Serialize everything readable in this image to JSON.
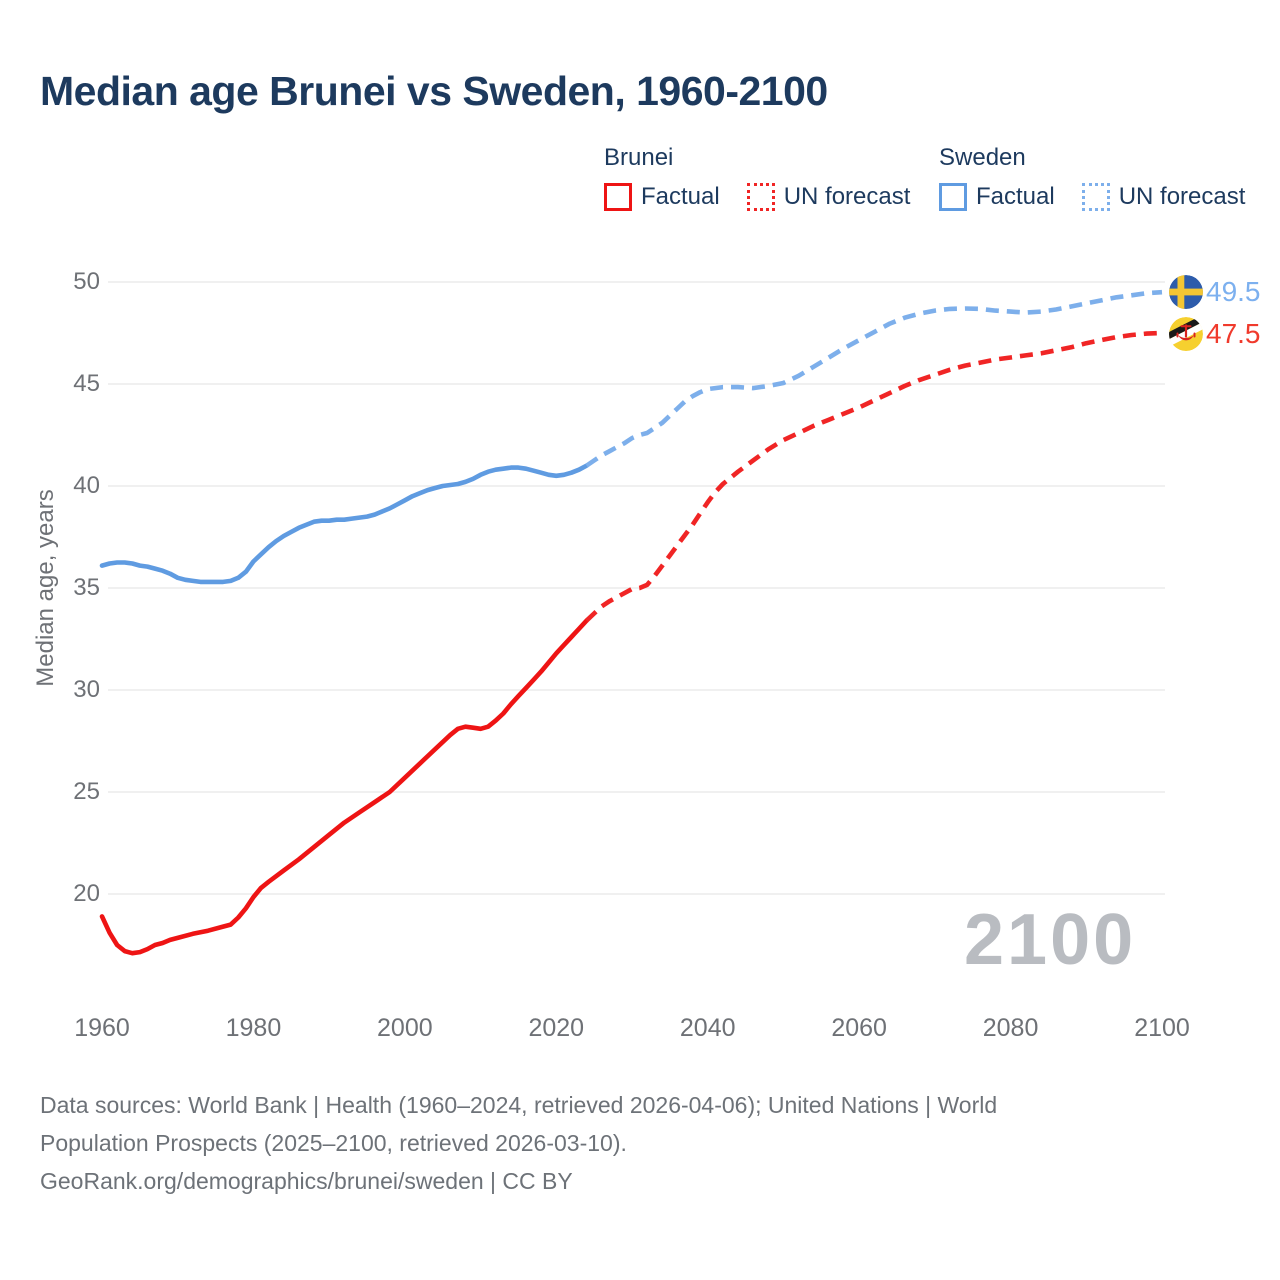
{
  "title": "Median age Brunei vs Sweden, 1960-2100",
  "legend": {
    "groups": [
      {
        "name": "Brunei",
        "factual_label": "Factual",
        "forecast_label": "UN forecast",
        "factual_color": "#ee1414",
        "forecast_color": "#f02525"
      },
      {
        "name": "Sweden",
        "factual_label": "Factual",
        "forecast_label": "UN forecast",
        "factual_color": "#5f9be1",
        "forecast_color": "#7dafeb"
      }
    ]
  },
  "watermark": "2100",
  "end_labels": {
    "sweden": {
      "value": "49.5",
      "color": "#7cb0ef",
      "flag": "sweden-flag"
    },
    "brunei": {
      "value": "47.5",
      "color": "#f03a2c",
      "flag": "brunei-flag"
    }
  },
  "footer_lines": [
    "Data sources: World Bank | Health (1960–2024, retrieved 2026-04-06); United Nations | World",
    "Population Prospects (2025–2100, retrieved 2026-03-10).",
    "GeoRank.org/demographics/brunei/sweden | CC BY"
  ],
  "chart_data": {
    "type": "line",
    "title": "Median age Brunei vs Sweden, 1960-2100",
    "xlabel": "",
    "ylabel": "Median age, years",
    "x_range": [
      1960,
      2100
    ],
    "y_ticks": [
      50,
      45,
      40,
      35,
      30,
      25,
      20
    ],
    "x_ticks": [
      1960,
      1980,
      2000,
      2020,
      2040,
      2060,
      2080,
      2100
    ],
    "grid": "horizontal",
    "legend_position": "top",
    "series": [
      {
        "name": "Brunei factual",
        "style": "solid",
        "color": "#ee1414",
        "points": [
          [
            1960,
            18.9
          ],
          [
            1961,
            18.1
          ],
          [
            1962,
            17.5
          ],
          [
            1963,
            17.2
          ],
          [
            1964,
            17.1
          ],
          [
            1965,
            17.15
          ],
          [
            1966,
            17.3
          ],
          [
            1967,
            17.5
          ],
          [
            1968,
            17.6
          ],
          [
            1969,
            17.75
          ],
          [
            1970,
            17.85
          ],
          [
            1972,
            18.05
          ],
          [
            1974,
            18.2
          ],
          [
            1976,
            18.4
          ],
          [
            1977,
            18.5
          ],
          [
            1978,
            18.85
          ],
          [
            1979,
            19.3
          ],
          [
            1980,
            19.85
          ],
          [
            1981,
            20.3
          ],
          [
            1982,
            20.6
          ],
          [
            1984,
            21.15
          ],
          [
            1986,
            21.7
          ],
          [
            1988,
            22.3
          ],
          [
            1990,
            22.9
          ],
          [
            1992,
            23.5
          ],
          [
            1994,
            24.0
          ],
          [
            1996,
            24.5
          ],
          [
            1998,
            25.0
          ],
          [
            2000,
            25.7
          ],
          [
            2002,
            26.4
          ],
          [
            2004,
            27.1
          ],
          [
            2006,
            27.8
          ],
          [
            2007,
            28.1
          ],
          [
            2008,
            28.2
          ],
          [
            2009,
            28.15
          ],
          [
            2010,
            28.1
          ],
          [
            2011,
            28.2
          ],
          [
            2012,
            28.5
          ],
          [
            2013,
            28.85
          ],
          [
            2014,
            29.3
          ],
          [
            2015,
            29.7
          ],
          [
            2016,
            30.1
          ],
          [
            2017,
            30.5
          ],
          [
            2018,
            30.9
          ],
          [
            2019,
            31.35
          ],
          [
            2020,
            31.8
          ],
          [
            2021,
            32.2
          ],
          [
            2022,
            32.6
          ],
          [
            2023,
            33.0
          ],
          [
            2024,
            33.4
          ]
        ]
      },
      {
        "name": "Brunei UN forecast",
        "style": "dashed",
        "color": "#f02525",
        "points": [
          [
            2024,
            33.4
          ],
          [
            2025,
            33.75
          ],
          [
            2026,
            34.1
          ],
          [
            2027,
            34.35
          ],
          [
            2028,
            34.55
          ],
          [
            2029,
            34.75
          ],
          [
            2030,
            34.95
          ],
          [
            2031,
            35.0
          ],
          [
            2032,
            35.15
          ],
          [
            2033,
            35.6
          ],
          [
            2034,
            36.1
          ],
          [
            2035,
            36.6
          ],
          [
            2036,
            37.1
          ],
          [
            2037,
            37.6
          ],
          [
            2038,
            38.1
          ],
          [
            2039,
            38.65
          ],
          [
            2040,
            39.2
          ],
          [
            2041,
            39.7
          ],
          [
            2042,
            40.1
          ],
          [
            2044,
            40.7
          ],
          [
            2046,
            41.25
          ],
          [
            2048,
            41.8
          ],
          [
            2050,
            42.25
          ],
          [
            2052,
            42.6
          ],
          [
            2054,
            42.95
          ],
          [
            2056,
            43.25
          ],
          [
            2058,
            43.55
          ],
          [
            2060,
            43.85
          ],
          [
            2062,
            44.2
          ],
          [
            2064,
            44.55
          ],
          [
            2066,
            44.9
          ],
          [
            2068,
            45.2
          ],
          [
            2070,
            45.45
          ],
          [
            2072,
            45.7
          ],
          [
            2074,
            45.9
          ],
          [
            2076,
            46.05
          ],
          [
            2078,
            46.2
          ],
          [
            2080,
            46.3
          ],
          [
            2082,
            46.4
          ],
          [
            2084,
            46.5
          ],
          [
            2086,
            46.65
          ],
          [
            2088,
            46.8
          ],
          [
            2090,
            47.0
          ],
          [
            2092,
            47.15
          ],
          [
            2094,
            47.3
          ],
          [
            2096,
            47.4
          ],
          [
            2098,
            47.47
          ],
          [
            2100,
            47.5
          ]
        ]
      },
      {
        "name": "Sweden factual",
        "style": "solid",
        "color": "#5f9be1",
        "points": [
          [
            1960,
            36.1
          ],
          [
            1961,
            36.2
          ],
          [
            1962,
            36.25
          ],
          [
            1963,
            36.25
          ],
          [
            1964,
            36.2
          ],
          [
            1965,
            36.1
          ],
          [
            1966,
            36.05
          ],
          [
            1967,
            35.95
          ],
          [
            1968,
            35.85
          ],
          [
            1969,
            35.7
          ],
          [
            1970,
            35.5
          ],
          [
            1971,
            35.4
          ],
          [
            1972,
            35.35
          ],
          [
            1973,
            35.3
          ],
          [
            1974,
            35.3
          ],
          [
            1975,
            35.3
          ],
          [
            1976,
            35.3
          ],
          [
            1977,
            35.35
          ],
          [
            1978,
            35.5
          ],
          [
            1979,
            35.8
          ],
          [
            1980,
            36.3
          ],
          [
            1981,
            36.65
          ],
          [
            1982,
            37.0
          ],
          [
            1983,
            37.3
          ],
          [
            1984,
            37.55
          ],
          [
            1985,
            37.75
          ],
          [
            1986,
            37.95
          ],
          [
            1987,
            38.1
          ],
          [
            1988,
            38.25
          ],
          [
            1989,
            38.3
          ],
          [
            1990,
            38.3
          ],
          [
            1991,
            38.35
          ],
          [
            1992,
            38.35
          ],
          [
            1993,
            38.4
          ],
          [
            1994,
            38.45
          ],
          [
            1995,
            38.5
          ],
          [
            1996,
            38.6
          ],
          [
            1997,
            38.75
          ],
          [
            1998,
            38.9
          ],
          [
            1999,
            39.1
          ],
          [
            2000,
            39.3
          ],
          [
            2001,
            39.5
          ],
          [
            2002,
            39.65
          ],
          [
            2003,
            39.8
          ],
          [
            2004,
            39.9
          ],
          [
            2005,
            40.0
          ],
          [
            2006,
            40.05
          ],
          [
            2007,
            40.1
          ],
          [
            2008,
            40.2
          ],
          [
            2009,
            40.35
          ],
          [
            2010,
            40.55
          ],
          [
            2011,
            40.7
          ],
          [
            2012,
            40.8
          ],
          [
            2013,
            40.85
          ],
          [
            2014,
            40.9
          ],
          [
            2015,
            40.9
          ],
          [
            2016,
            40.85
          ],
          [
            2017,
            40.75
          ],
          [
            2018,
            40.65
          ],
          [
            2019,
            40.55
          ],
          [
            2020,
            40.5
          ],
          [
            2021,
            40.55
          ],
          [
            2022,
            40.65
          ],
          [
            2023,
            40.8
          ],
          [
            2024,
            41.0
          ]
        ]
      },
      {
        "name": "Sweden UN forecast",
        "style": "dashed",
        "color": "#7dafeb",
        "points": [
          [
            2024,
            41.0
          ],
          [
            2025,
            41.25
          ],
          [
            2026,
            41.5
          ],
          [
            2027,
            41.7
          ],
          [
            2028,
            41.9
          ],
          [
            2029,
            42.1
          ],
          [
            2030,
            42.35
          ],
          [
            2031,
            42.5
          ],
          [
            2032,
            42.6
          ],
          [
            2033,
            42.85
          ],
          [
            2034,
            43.1
          ],
          [
            2035,
            43.45
          ],
          [
            2036,
            43.8
          ],
          [
            2037,
            44.15
          ],
          [
            2038,
            44.4
          ],
          [
            2039,
            44.6
          ],
          [
            2040,
            44.75
          ],
          [
            2041,
            44.8
          ],
          [
            2042,
            44.85
          ],
          [
            2044,
            44.85
          ],
          [
            2046,
            44.8
          ],
          [
            2048,
            44.9
          ],
          [
            2050,
            45.05
          ],
          [
            2052,
            45.4
          ],
          [
            2054,
            45.85
          ],
          [
            2056,
            46.3
          ],
          [
            2058,
            46.75
          ],
          [
            2060,
            47.15
          ],
          [
            2062,
            47.55
          ],
          [
            2064,
            47.95
          ],
          [
            2066,
            48.25
          ],
          [
            2068,
            48.45
          ],
          [
            2070,
            48.6
          ],
          [
            2072,
            48.68
          ],
          [
            2074,
            48.7
          ],
          [
            2076,
            48.68
          ],
          [
            2078,
            48.6
          ],
          [
            2080,
            48.55
          ],
          [
            2082,
            48.5
          ],
          [
            2084,
            48.55
          ],
          [
            2086,
            48.65
          ],
          [
            2088,
            48.8
          ],
          [
            2090,
            48.95
          ],
          [
            2092,
            49.1
          ],
          [
            2094,
            49.25
          ],
          [
            2096,
            49.35
          ],
          [
            2098,
            49.45
          ],
          [
            2100,
            49.5
          ]
        ]
      }
    ]
  }
}
